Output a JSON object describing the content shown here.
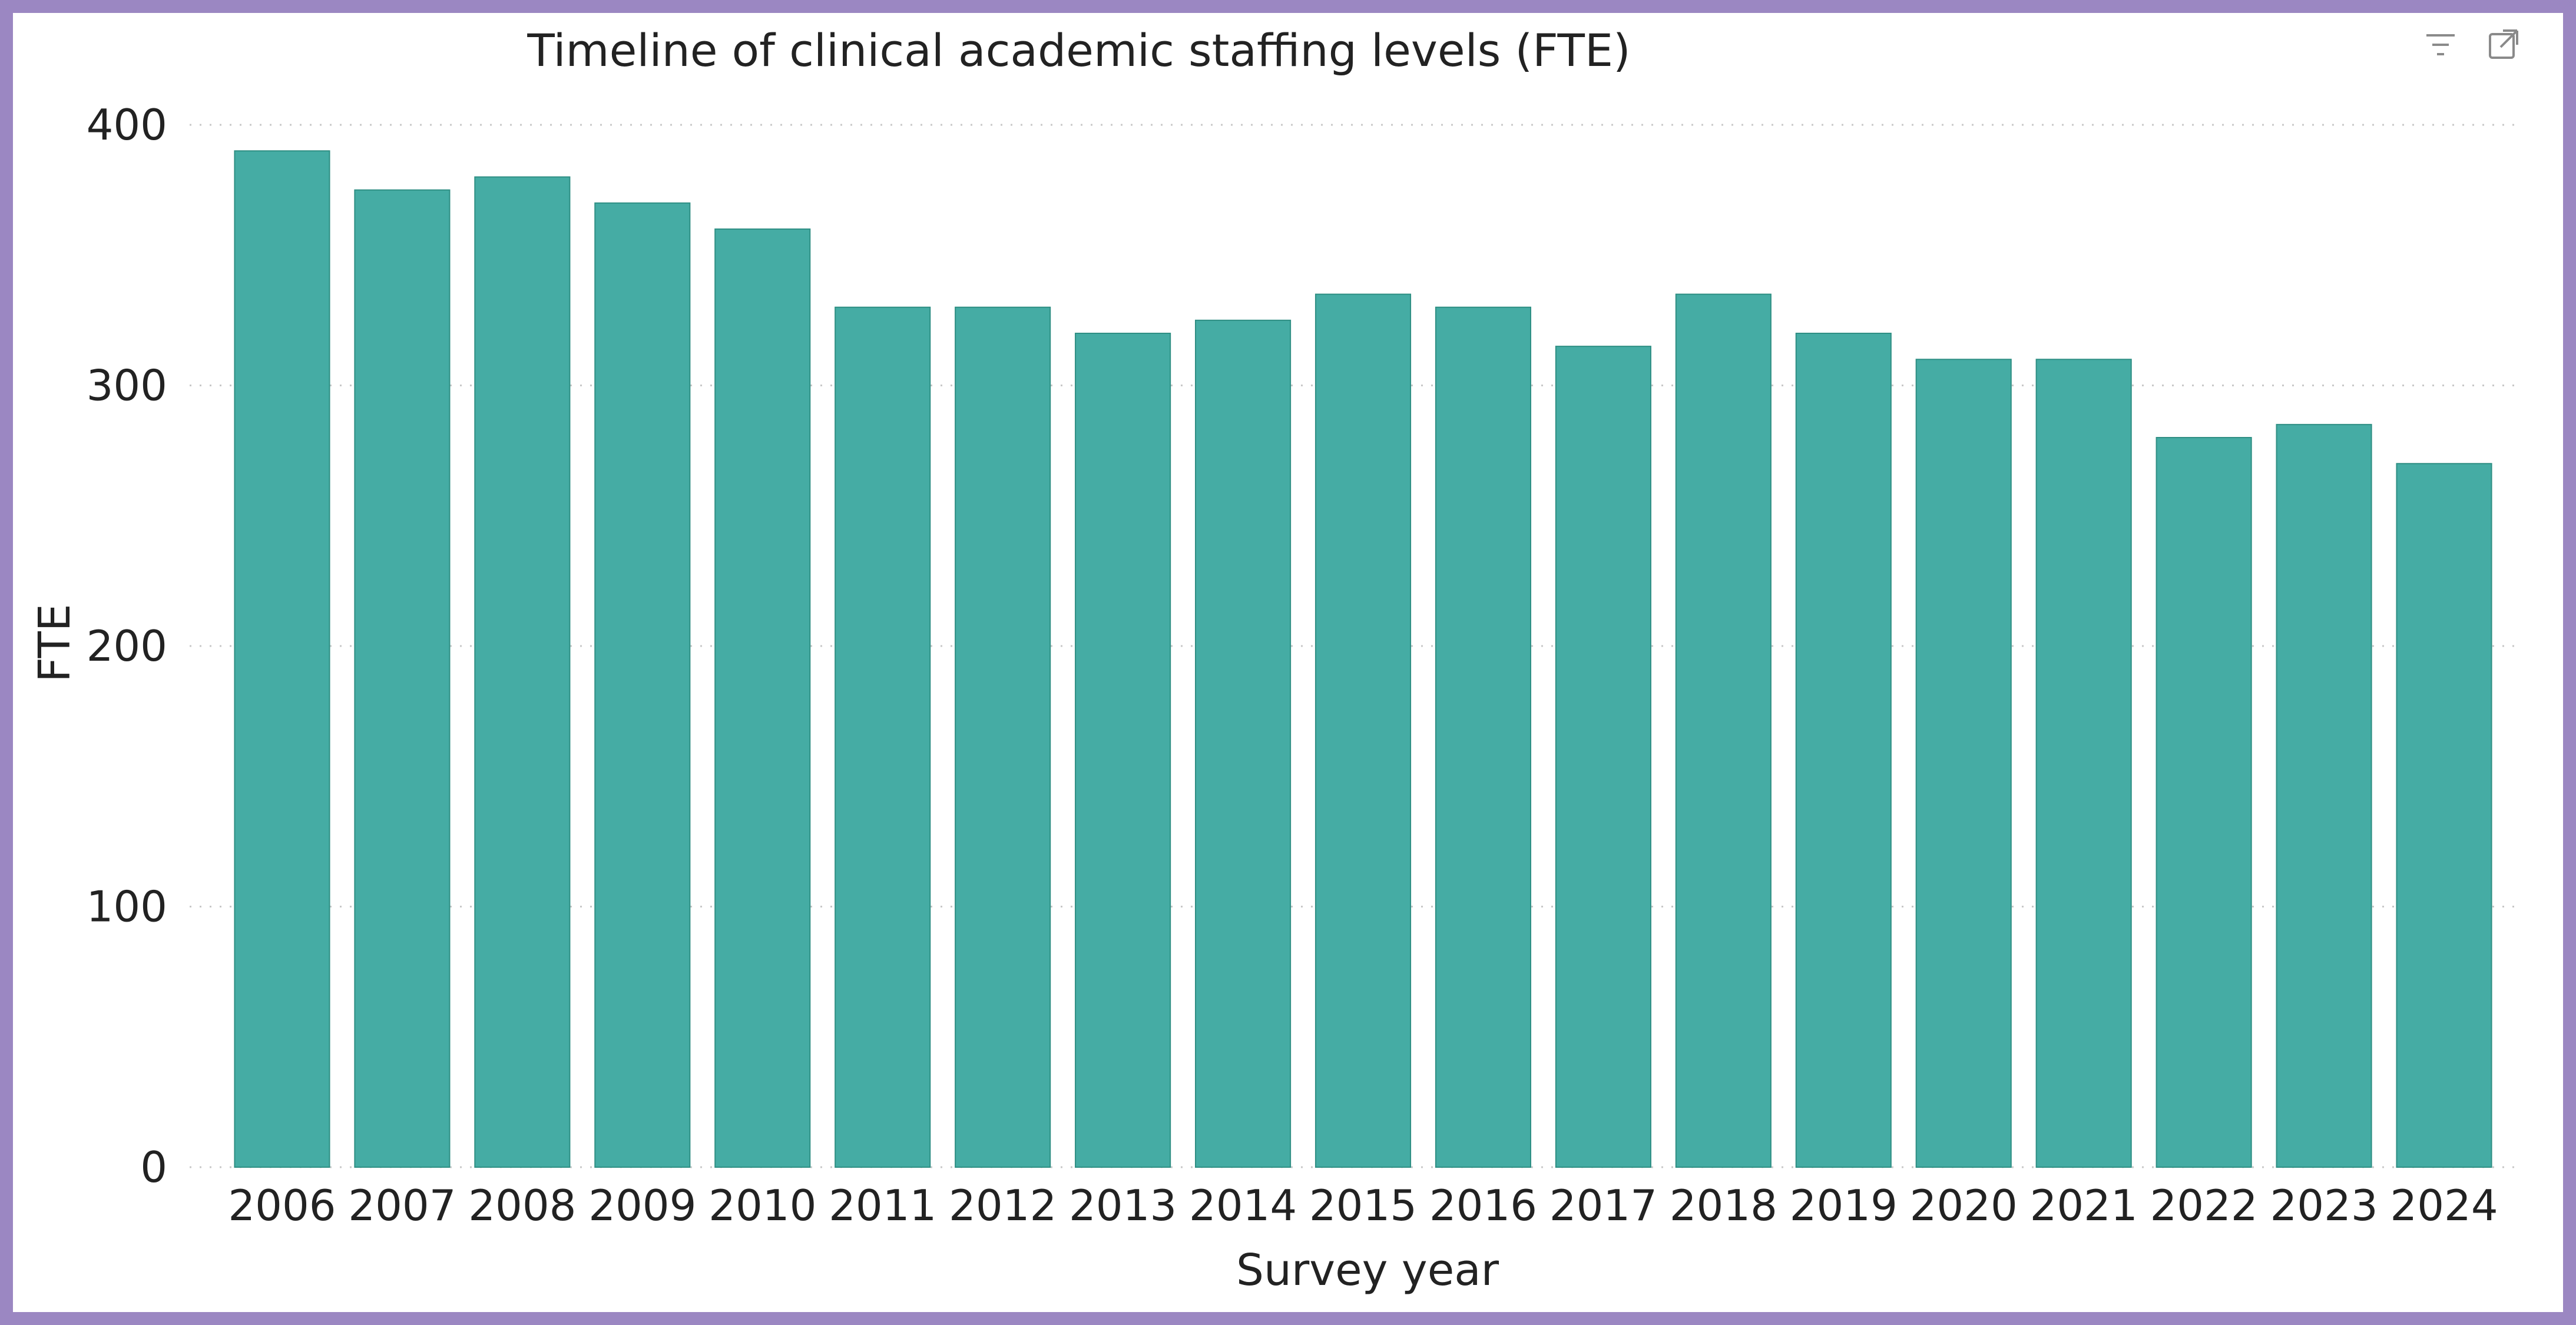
{
  "toolbar": {
    "filter_icon": "filter-icon",
    "expand_icon": "expand-icon"
  },
  "colors": {
    "bar": "#45ACA4",
    "frame": "#9B87C2"
  },
  "chart_data": {
    "type": "bar",
    "title": "Timeline of clinical academic staffing levels (FTE)",
    "xlabel": "Survey year",
    "ylabel": "FTE",
    "categories": [
      "2006",
      "2007",
      "2008",
      "2009",
      "2010",
      "2011",
      "2012",
      "2013",
      "2014",
      "2015",
      "2016",
      "2017",
      "2018",
      "2019",
      "2020",
      "2021",
      "2022",
      "2023",
      "2024"
    ],
    "values": [
      390,
      375,
      380,
      370,
      360,
      330,
      330,
      320,
      325,
      335,
      330,
      315,
      335,
      320,
      310,
      310,
      280,
      285,
      270
    ],
    "ylim": [
      0,
      400
    ],
    "yticks": [
      0,
      100,
      200,
      300,
      400
    ],
    "grid": true,
    "legend": "none"
  }
}
